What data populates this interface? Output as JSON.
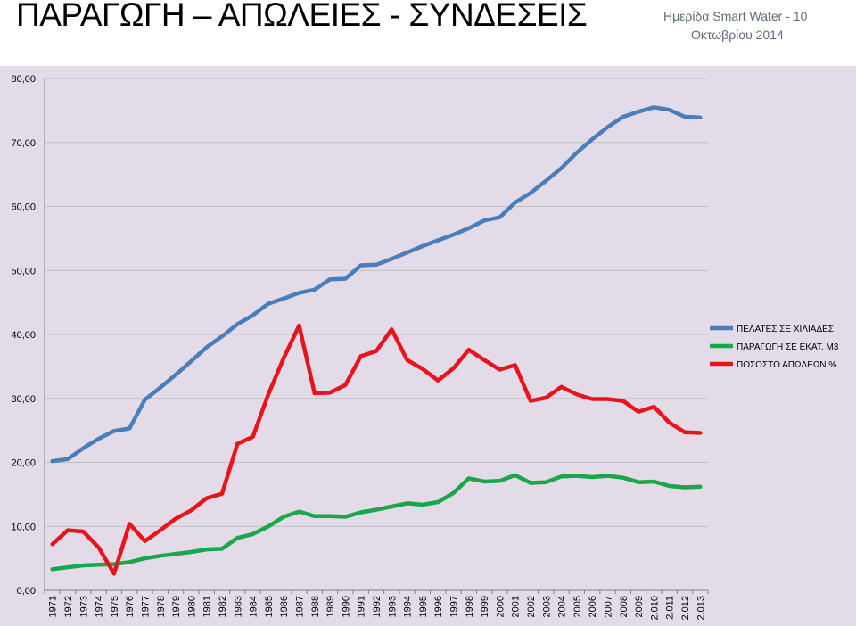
{
  "header": {
    "title": "ΠΑΡΑΓΩΓΗ – ΑΠΩΛΕΙΕΣ - ΣΥΝΔΕΣΕΙΣ",
    "subtitle_line1": "Ημερίδα Smart Water - 10",
    "subtitle_line2": "Οκτωβρίου 2014"
  },
  "chart_data": {
    "type": "line",
    "categories": [
      "1971",
      "1972",
      "1973",
      "1974",
      "1975",
      "1976",
      "1977",
      "1978",
      "1979",
      "1980",
      "1981",
      "1982",
      "1983",
      "1984",
      "1985",
      "1986",
      "1987",
      "1988",
      "1989",
      "1990",
      "1991",
      "1992",
      "1993",
      "1994",
      "1995",
      "1996",
      "1997",
      "1998",
      "1999",
      "2000",
      "2001",
      "2002",
      "2003",
      "2004",
      "2005",
      "2006",
      "2007",
      "2008",
      "2009",
      "2.010",
      "2.011",
      "2.012",
      "2.013"
    ],
    "yticks": [
      "0,00",
      "10,00",
      "20,00",
      "30,00",
      "40,00",
      "50,00",
      "60,00",
      "70,00",
      "80,00"
    ],
    "ylim": [
      0,
      80
    ],
    "grid": true,
    "legend_position": "right",
    "series": [
      {
        "name": "ΠΕΛΑΤΕΣ ΣΕ ΧΙΛΙΑΔΕΣ",
        "color": "#4a7ebb",
        "values": [
          20.2,
          20.5,
          22.2,
          23.7,
          24.9,
          25.3,
          29.8,
          31.7,
          33.7,
          35.8,
          38.0,
          39.7,
          41.6,
          43.0,
          44.8,
          45.6,
          46.5,
          47.0,
          48.6,
          48.7,
          50.8,
          50.9,
          51.8,
          52.8,
          53.8,
          54.7,
          55.6,
          56.6,
          57.8,
          58.3,
          60.6,
          62.1,
          64.0,
          66.0,
          68.4,
          70.5,
          72.4,
          74.0,
          74.8,
          75.5,
          75.1,
          74.0,
          73.9
        ]
      },
      {
        "name": "ΠΑΡΑΓΩΓΗ ΣΕ ΕΚΑΤ. Μ3",
        "color": "#1aa64a",
        "values": [
          3.3,
          3.6,
          3.9,
          4.0,
          4.1,
          4.4,
          5.0,
          5.4,
          5.7,
          6.0,
          6.4,
          6.5,
          8.2,
          8.8,
          10.0,
          11.5,
          12.3,
          11.6,
          11.6,
          11.5,
          12.2,
          12.6,
          13.1,
          13.6,
          13.4,
          13.8,
          15.2,
          17.5,
          17.0,
          17.1,
          18.0,
          16.8,
          16.9,
          17.8,
          17.9,
          17.7,
          17.9,
          17.6,
          16.9,
          17.0,
          16.3,
          16.1,
          16.2
        ]
      },
      {
        "name": "ΠΟΣΟΣΤΟ ΑΠΩΛΕΩΝ %",
        "color": "#e8141c",
        "values": [
          7.2,
          9.4,
          9.2,
          6.7,
          2.6,
          10.4,
          7.7,
          9.4,
          11.2,
          12.5,
          14.4,
          15.1,
          22.9,
          24.0,
          30.6,
          36.3,
          41.4,
          30.8,
          30.9,
          32.1,
          36.6,
          37.4,
          40.8,
          36.0,
          34.6,
          32.8,
          34.7,
          37.6,
          36.0,
          34.5,
          35.2,
          29.6,
          30.1,
          31.8,
          30.6,
          29.9,
          29.9,
          29.6,
          27.9,
          28.7,
          26.2,
          24.7,
          24.6
        ]
      }
    ]
  }
}
